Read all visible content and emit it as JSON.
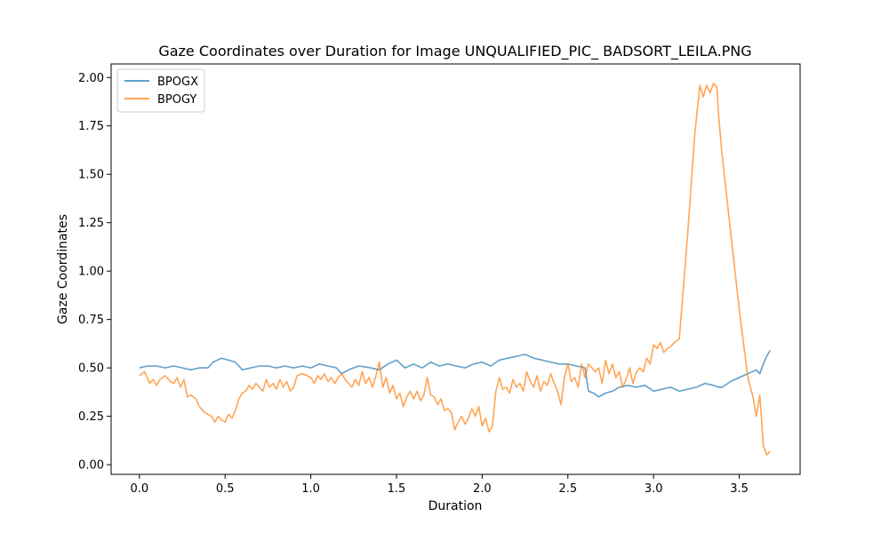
{
  "chart_data": {
    "type": "line",
    "title": "Gaze Coordinates over Duration for Image UNQUALIFIED_PIC_ BADSORT_LEILA.PNG",
    "xlabel": "Duration",
    "ylabel": "Gaze Coordinates",
    "xlim": [
      -0.165,
      3.855
    ],
    "ylim": [
      -0.05,
      2.07
    ],
    "xticks": [
      "0.0",
      "0.5",
      "1.0",
      "1.5",
      "2.0",
      "2.5",
      "3.0",
      "3.5"
    ],
    "yticks": [
      "0.00",
      "0.25",
      "0.50",
      "0.75",
      "1.00",
      "1.25",
      "1.50",
      "1.75",
      "2.00"
    ],
    "legend_placement": "top-left",
    "grid": false,
    "series": [
      {
        "name": "BPOGX",
        "color": "#1f77b4",
        "points": [
          [
            0.0,
            0.5
          ],
          [
            0.05,
            0.51
          ],
          [
            0.1,
            0.51
          ],
          [
            0.15,
            0.5
          ],
          [
            0.2,
            0.51
          ],
          [
            0.25,
            0.5
          ],
          [
            0.3,
            0.49
          ],
          [
            0.35,
            0.5
          ],
          [
            0.4,
            0.5
          ],
          [
            0.43,
            0.53
          ],
          [
            0.48,
            0.55
          ],
          [
            0.52,
            0.54
          ],
          [
            0.56,
            0.53
          ],
          [
            0.6,
            0.49
          ],
          [
            0.65,
            0.5
          ],
          [
            0.7,
            0.51
          ],
          [
            0.75,
            0.51
          ],
          [
            0.8,
            0.5
          ],
          [
            0.85,
            0.51
          ],
          [
            0.9,
            0.5
          ],
          [
            0.95,
            0.51
          ],
          [
            1.0,
            0.5
          ],
          [
            1.05,
            0.52
          ],
          [
            1.1,
            0.51
          ],
          [
            1.15,
            0.5
          ],
          [
            1.18,
            0.47
          ],
          [
            1.22,
            0.49
          ],
          [
            1.28,
            0.51
          ],
          [
            1.35,
            0.5
          ],
          [
            1.4,
            0.49
          ],
          [
            1.45,
            0.52
          ],
          [
            1.5,
            0.54
          ],
          [
            1.55,
            0.5
          ],
          [
            1.6,
            0.52
          ],
          [
            1.65,
            0.5
          ],
          [
            1.7,
            0.53
          ],
          [
            1.75,
            0.51
          ],
          [
            1.8,
            0.52
          ],
          [
            1.85,
            0.51
          ],
          [
            1.9,
            0.5
          ],
          [
            1.95,
            0.52
          ],
          [
            2.0,
            0.53
          ],
          [
            2.05,
            0.51
          ],
          [
            2.1,
            0.54
          ],
          [
            2.15,
            0.55
          ],
          [
            2.2,
            0.56
          ],
          [
            2.25,
            0.57
          ],
          [
            2.3,
            0.55
          ],
          [
            2.35,
            0.54
          ],
          [
            2.4,
            0.53
          ],
          [
            2.45,
            0.52
          ],
          [
            2.5,
            0.52
          ],
          [
            2.55,
            0.51
          ],
          [
            2.6,
            0.5
          ],
          [
            2.62,
            0.38
          ],
          [
            2.65,
            0.37
          ],
          [
            2.68,
            0.35
          ],
          [
            2.72,
            0.37
          ],
          [
            2.76,
            0.38
          ],
          [
            2.8,
            0.4
          ],
          [
            2.85,
            0.41
          ],
          [
            2.9,
            0.4
          ],
          [
            2.95,
            0.41
          ],
          [
            3.0,
            0.38
          ],
          [
            3.05,
            0.39
          ],
          [
            3.1,
            0.4
          ],
          [
            3.15,
            0.38
          ],
          [
            3.2,
            0.39
          ],
          [
            3.25,
            0.4
          ],
          [
            3.3,
            0.42
          ],
          [
            3.35,
            0.41
          ],
          [
            3.38,
            0.4
          ],
          [
            3.4,
            0.4
          ],
          [
            3.45,
            0.43
          ],
          [
            3.5,
            0.45
          ],
          [
            3.55,
            0.47
          ],
          [
            3.6,
            0.49
          ],
          [
            3.62,
            0.47
          ],
          [
            3.64,
            0.52
          ],
          [
            3.66,
            0.56
          ],
          [
            3.68,
            0.59
          ]
        ]
      },
      {
        "name": "BPOGY",
        "color": "#ff7f0e",
        "points": [
          [
            0.0,
            0.46
          ],
          [
            0.03,
            0.48
          ],
          [
            0.06,
            0.42
          ],
          [
            0.08,
            0.44
          ],
          [
            0.1,
            0.41
          ],
          [
            0.12,
            0.44
          ],
          [
            0.15,
            0.46
          ],
          [
            0.18,
            0.43
          ],
          [
            0.2,
            0.42
          ],
          [
            0.22,
            0.45
          ],
          [
            0.24,
            0.4
          ],
          [
            0.26,
            0.44
          ],
          [
            0.28,
            0.35
          ],
          [
            0.3,
            0.36
          ],
          [
            0.33,
            0.34
          ],
          [
            0.35,
            0.3
          ],
          [
            0.38,
            0.27
          ],
          [
            0.4,
            0.26
          ],
          [
            0.42,
            0.25
          ],
          [
            0.44,
            0.22
          ],
          [
            0.46,
            0.25
          ],
          [
            0.48,
            0.23
          ],
          [
            0.5,
            0.22
          ],
          [
            0.52,
            0.26
          ],
          [
            0.54,
            0.24
          ],
          [
            0.56,
            0.28
          ],
          [
            0.58,
            0.34
          ],
          [
            0.6,
            0.37
          ],
          [
            0.62,
            0.38
          ],
          [
            0.64,
            0.41
          ],
          [
            0.66,
            0.39
          ],
          [
            0.68,
            0.42
          ],
          [
            0.7,
            0.4
          ],
          [
            0.72,
            0.38
          ],
          [
            0.74,
            0.44
          ],
          [
            0.76,
            0.4
          ],
          [
            0.78,
            0.42
          ],
          [
            0.8,
            0.39
          ],
          [
            0.82,
            0.44
          ],
          [
            0.84,
            0.4
          ],
          [
            0.86,
            0.43
          ],
          [
            0.88,
            0.38
          ],
          [
            0.9,
            0.4
          ],
          [
            0.92,
            0.46
          ],
          [
            0.95,
            0.47
          ],
          [
            0.98,
            0.46
          ],
          [
            1.0,
            0.45
          ],
          [
            1.02,
            0.42
          ],
          [
            1.04,
            0.46
          ],
          [
            1.06,
            0.44
          ],
          [
            1.08,
            0.47
          ],
          [
            1.1,
            0.43
          ],
          [
            1.12,
            0.45
          ],
          [
            1.14,
            0.42
          ],
          [
            1.16,
            0.45
          ],
          [
            1.18,
            0.47
          ],
          [
            1.2,
            0.44
          ],
          [
            1.22,
            0.42
          ],
          [
            1.24,
            0.4
          ],
          [
            1.26,
            0.44
          ],
          [
            1.28,
            0.41
          ],
          [
            1.3,
            0.48
          ],
          [
            1.32,
            0.42
          ],
          [
            1.34,
            0.45
          ],
          [
            1.36,
            0.4
          ],
          [
            1.38,
            0.46
          ],
          [
            1.4,
            0.53
          ],
          [
            1.42,
            0.4
          ],
          [
            1.44,
            0.45
          ],
          [
            1.46,
            0.37
          ],
          [
            1.48,
            0.41
          ],
          [
            1.5,
            0.34
          ],
          [
            1.52,
            0.37
          ],
          [
            1.54,
            0.3
          ],
          [
            1.56,
            0.35
          ],
          [
            1.58,
            0.38
          ],
          [
            1.6,
            0.34
          ],
          [
            1.62,
            0.38
          ],
          [
            1.64,
            0.33
          ],
          [
            1.66,
            0.36
          ],
          [
            1.68,
            0.45
          ],
          [
            1.7,
            0.36
          ],
          [
            1.72,
            0.35
          ],
          [
            1.74,
            0.31
          ],
          [
            1.76,
            0.34
          ],
          [
            1.78,
            0.28
          ],
          [
            1.8,
            0.29
          ],
          [
            1.82,
            0.27
          ],
          [
            1.84,
            0.18
          ],
          [
            1.86,
            0.22
          ],
          [
            1.88,
            0.25
          ],
          [
            1.9,
            0.21
          ],
          [
            1.92,
            0.24
          ],
          [
            1.94,
            0.29
          ],
          [
            1.96,
            0.25
          ],
          [
            1.98,
            0.3
          ],
          [
            2.0,
            0.2
          ],
          [
            2.02,
            0.24
          ],
          [
            2.04,
            0.17
          ],
          [
            2.06,
            0.2
          ],
          [
            2.08,
            0.38
          ],
          [
            2.1,
            0.45
          ],
          [
            2.12,
            0.39
          ],
          [
            2.14,
            0.4
          ],
          [
            2.16,
            0.37
          ],
          [
            2.18,
            0.44
          ],
          [
            2.2,
            0.4
          ],
          [
            2.22,
            0.42
          ],
          [
            2.24,
            0.38
          ],
          [
            2.26,
            0.48
          ],
          [
            2.28,
            0.43
          ],
          [
            2.3,
            0.4
          ],
          [
            2.32,
            0.46
          ],
          [
            2.34,
            0.38
          ],
          [
            2.36,
            0.43
          ],
          [
            2.38,
            0.41
          ],
          [
            2.4,
            0.47
          ],
          [
            2.42,
            0.42
          ],
          [
            2.44,
            0.38
          ],
          [
            2.46,
            0.31
          ],
          [
            2.48,
            0.45
          ],
          [
            2.5,
            0.52
          ],
          [
            2.52,
            0.43
          ],
          [
            2.54,
            0.45
          ],
          [
            2.56,
            0.4
          ],
          [
            2.58,
            0.52
          ],
          [
            2.6,
            0.45
          ],
          [
            2.62,
            0.52
          ],
          [
            2.64,
            0.5
          ],
          [
            2.66,
            0.48
          ],
          [
            2.68,
            0.5
          ],
          [
            2.7,
            0.42
          ],
          [
            2.72,
            0.54
          ],
          [
            2.74,
            0.47
          ],
          [
            2.76,
            0.52
          ],
          [
            2.78,
            0.45
          ],
          [
            2.8,
            0.48
          ],
          [
            2.82,
            0.4
          ],
          [
            2.84,
            0.44
          ],
          [
            2.86,
            0.5
          ],
          [
            2.88,
            0.42
          ],
          [
            2.9,
            0.48
          ],
          [
            2.92,
            0.5
          ],
          [
            2.94,
            0.48
          ],
          [
            2.96,
            0.55
          ],
          [
            2.98,
            0.52
          ],
          [
            3.0,
            0.62
          ],
          [
            3.02,
            0.6
          ],
          [
            3.04,
            0.63
          ],
          [
            3.06,
            0.58
          ],
          [
            3.08,
            0.6
          ],
          [
            3.1,
            0.61
          ],
          [
            3.12,
            0.63
          ],
          [
            3.15,
            0.65
          ],
          [
            3.2,
            1.2
          ],
          [
            3.24,
            1.7
          ],
          [
            3.27,
            1.96
          ],
          [
            3.29,
            1.9
          ],
          [
            3.31,
            1.96
          ],
          [
            3.33,
            1.92
          ],
          [
            3.35,
            1.97
          ],
          [
            3.37,
            1.95
          ],
          [
            3.38,
            1.8
          ],
          [
            3.4,
            1.6
          ],
          [
            3.45,
            1.2
          ],
          [
            3.5,
            0.8
          ],
          [
            3.55,
            0.45
          ],
          [
            3.58,
            0.35
          ],
          [
            3.6,
            0.25
          ],
          [
            3.62,
            0.36
          ],
          [
            3.64,
            0.1
          ],
          [
            3.66,
            0.05
          ],
          [
            3.68,
            0.07
          ]
        ]
      }
    ]
  }
}
